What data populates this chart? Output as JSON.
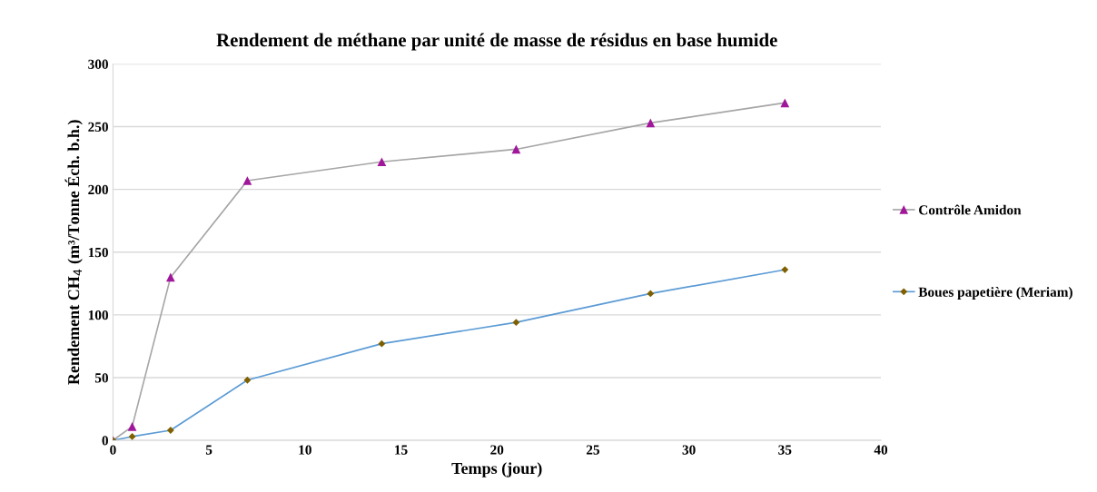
{
  "chart_data": {
    "type": "line",
    "title": "Rendement de méthane par unité de masse de résidus en base humide",
    "xlabel": "Temps (jour)",
    "ylabel": "Rendement CH$_{4}$ (m³/Tonne Éch. b.h.)",
    "x": [
      0,
      1,
      3,
      7,
      14,
      21,
      28,
      35
    ],
    "series": [
      {
        "name": "Contrôle Amidon",
        "color": "#a6a6a6",
        "colors": [
          "#a0179a",
          "#a0179a",
          "#a0179a",
          "#a0179a",
          "#a0179a",
          "#a0179a",
          "#a0179a",
          "#a0179a"
        ],
        "marker": "triangle",
        "values": [
          0,
          11,
          130,
          207,
          222,
          232,
          253,
          269
        ]
      },
      {
        "name": "Boues papetière (Meriam)",
        "color": "#5b9bd5",
        "colors": [
          "#7f6000",
          "#7f6000",
          "#7f6000",
          "#7f6000",
          "#7f6000",
          "#7f6000",
          "#7f6000",
          "#7f6000"
        ],
        "marker": "diamond",
        "values": [
          0,
          3,
          8,
          48,
          77,
          94,
          117,
          136
        ]
      }
    ],
    "xlim": [
      0,
      40
    ],
    "xticks": [
      0,
      5,
      10,
      15,
      20,
      25,
      30,
      35,
      40
    ],
    "ylim": [
      0,
      300
    ],
    "yticks": [
      0,
      50,
      100,
      150,
      200,
      250,
      300
    ],
    "grid": "y",
    "legend": "right"
  }
}
